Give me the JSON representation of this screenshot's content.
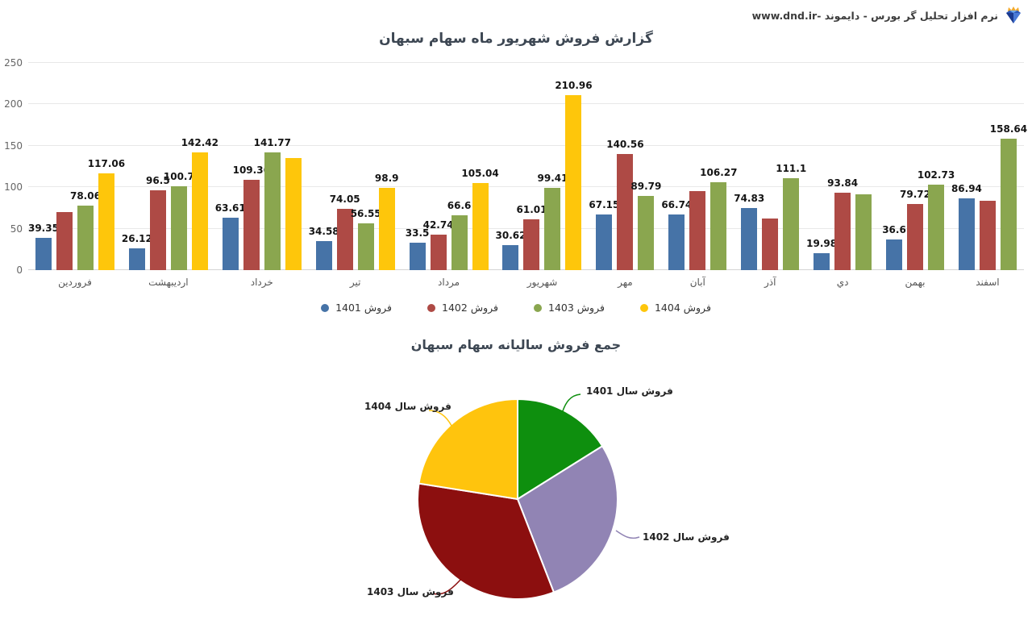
{
  "header": {
    "brand": "نرم افزار تحلیل گر بورس - دایموند -www.dnd.ir",
    "brand_icon": "diamond-crown-icon"
  },
  "colors": {
    "series_1401": "#4673a7",
    "series_1402": "#ae4a45",
    "series_1403": "#8aa64f",
    "series_1404": "#fec60b",
    "pie_1401": "#0e8f0e",
    "pie_1402": "#9184b4",
    "pie_1403": "#8c0f0f",
    "pie_1404": "#ffc40d",
    "gridline": "#e8e8e8",
    "title_text": "#3d4753"
  },
  "chart_data": [
    {
      "type": "bar",
      "title": "گزارش فروش شهریور ماه سهام سبهان",
      "categories": [
        "فروردین",
        "اردیبهشت",
        "خرداد",
        "تیر",
        "مرداد",
        "شهریور",
        "مهر",
        "آبان",
        "آذر",
        "دي",
        "بهمن",
        "اسفند"
      ],
      "series": [
        {
          "name": "فروش 1401",
          "color": "#4673a7",
          "values": [
            39.35,
            26.12,
            63.61,
            34.58,
            33.5,
            30.62,
            67.15,
            66.74,
            74.83,
            19.98,
            36.6,
            86.94
          ],
          "labels": [
            "39.35",
            "26.12",
            "63.61",
            "34.58",
            "33.5",
            "30.62",
            "67.15",
            "66.74",
            "74.83",
            "19.98",
            "36.6",
            "86.94"
          ]
        },
        {
          "name": "فروش 1402",
          "color": "#ae4a45",
          "values": [
            70,
            96.5,
            109.36,
            74.05,
            42.74,
            61.01,
            140.56,
            95,
            62,
            93.84,
            79.72,
            84
          ],
          "labels": [
            null,
            "96.5",
            "109.36",
            "74.05",
            "42.74",
            "61.01",
            "140.56",
            null,
            null,
            "93.84",
            "79.72",
            null
          ]
        },
        {
          "name": "فروش 1403",
          "color": "#8aa64f",
          "values": [
            78.06,
            100.7,
            141.77,
            56.55,
            66.6,
            99.41,
            89.79,
            106.27,
            111.1,
            91,
            102.73,
            158.64
          ],
          "labels": [
            "78.06",
            "100.7",
            "141.77",
            "56.55",
            "66.6",
            "99.41",
            "89.79",
            "106.27",
            "111.1",
            null,
            "102.73",
            "158.64"
          ]
        },
        {
          "name": "فروش 1404",
          "color": "#fec60b",
          "values": [
            117.06,
            142.42,
            135,
            98.9,
            105.04,
            210.96,
            null,
            null,
            null,
            null,
            null,
            null
          ],
          "labels": [
            "117.06",
            "142.42",
            null,
            "98.9",
            "105.04",
            "210.96",
            null,
            null,
            null,
            null,
            null,
            null
          ]
        }
      ],
      "ylim": [
        0,
        250
      ],
      "yticks": [
        0,
        50,
        100,
        150,
        200,
        250
      ],
      "grid": true,
      "legend_position": "bottom"
    },
    {
      "type": "pie",
      "title": "جمع فروش سالیانه سهام سبهان",
      "labels": [
        "فروش سال 1401",
        "فروش سال 1402",
        "فروش سال 1403",
        "فروش سال 1404"
      ],
      "values": [
        16.1,
        28.0,
        33.4,
        22.5
      ],
      "unit": "percent-estimated",
      "colors": [
        "#0e8f0e",
        "#9184b4",
        "#8c0f0f",
        "#ffc40d"
      ],
      "start_angle_deg": 0,
      "direction": "clockwise",
      "legend_position": "none"
    }
  ]
}
